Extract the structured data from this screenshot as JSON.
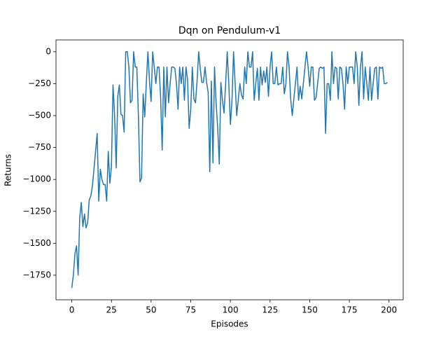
{
  "chart_data": {
    "type": "line",
    "title": "Dqn on Pendulum-v1",
    "xlabel": "Episodes",
    "ylabel": "Returns",
    "color": "#1f77b4",
    "x": [
      0,
      1,
      2,
      3,
      4,
      5,
      6,
      7,
      8,
      9,
      10,
      11,
      12,
      13,
      14,
      15,
      16,
      17,
      18,
      19,
      20,
      21,
      22,
      23,
      24,
      25,
      26,
      27,
      28,
      29,
      30,
      31,
      32,
      33,
      34,
      35,
      36,
      37,
      38,
      39,
      40,
      41,
      42,
      43,
      44,
      45,
      46,
      47,
      48,
      49,
      50,
      51,
      52,
      53,
      54,
      55,
      56,
      57,
      58,
      59,
      60,
      61,
      62,
      63,
      64,
      65,
      66,
      67,
      68,
      69,
      70,
      71,
      72,
      73,
      74,
      75,
      76,
      77,
      78,
      79,
      80,
      81,
      82,
      83,
      84,
      85,
      86,
      87,
      88,
      89,
      90,
      91,
      92,
      93,
      94,
      95,
      96,
      97,
      98,
      99,
      100,
      101,
      102,
      103,
      104,
      105,
      106,
      107,
      108,
      109,
      110,
      111,
      112,
      113,
      114,
      115,
      116,
      117,
      118,
      119,
      120,
      121,
      122,
      123,
      124,
      125,
      126,
      127,
      128,
      129,
      130,
      131,
      132,
      133,
      134,
      135,
      136,
      137,
      138,
      139,
      140,
      141,
      142,
      143,
      144,
      145,
      146,
      147,
      148,
      149,
      150,
      151,
      152,
      153,
      154,
      155,
      156,
      157,
      158,
      159,
      160,
      161,
      162,
      163,
      164,
      165,
      166,
      167,
      168,
      169,
      170,
      171,
      172,
      173,
      174,
      175,
      176,
      177,
      178,
      179,
      180,
      181,
      182,
      183,
      184,
      185,
      186,
      187,
      188,
      189,
      190,
      191,
      192,
      193,
      194,
      195,
      196,
      197,
      198,
      199
    ],
    "values": [
      -1850,
      -1750,
      -1580,
      -1520,
      -1750,
      -1300,
      -1180,
      -1370,
      -1270,
      -1380,
      -1340,
      -1160,
      -1130,
      -1050,
      -920,
      -780,
      -640,
      -1170,
      -920,
      -1000,
      -1040,
      -1040,
      -1170,
      -780,
      -1030,
      -900,
      -260,
      -500,
      -910,
      -350,
      -260,
      -490,
      -500,
      -630,
      0,
      0,
      -120,
      -400,
      -380,
      0,
      -120,
      -120,
      -500,
      -1020,
      -990,
      -330,
      -510,
      -240,
      0,
      -230,
      -390,
      0,
      -120,
      -250,
      -120,
      -120,
      -350,
      -770,
      -120,
      -510,
      -120,
      -400,
      -250,
      -120,
      -120,
      -130,
      -250,
      -450,
      -120,
      -250,
      -120,
      -380,
      -120,
      -220,
      -600,
      -450,
      -120,
      -370,
      -400,
      -230,
      0,
      -130,
      -240,
      -240,
      -120,
      -240,
      -320,
      -940,
      -230,
      -870,
      -120,
      -400,
      -600,
      -880,
      -240,
      -380,
      -480,
      -250,
      0,
      -250,
      -570,
      -380,
      0,
      -250,
      -500,
      -370,
      -250,
      -340,
      -370,
      -120,
      -250,
      0,
      -120,
      -120,
      0,
      -380,
      -250,
      -130,
      -380,
      -120,
      -260,
      -150,
      -240,
      -120,
      -350,
      -120,
      0,
      -250,
      -250,
      -120,
      -260,
      -250,
      -250,
      -120,
      -330,
      -250,
      0,
      -120,
      -370,
      -500,
      -370,
      -250,
      -120,
      -380,
      -270,
      -370,
      -250,
      -120,
      0,
      -120,
      -270,
      -120,
      -120,
      -380,
      -360,
      -250,
      -130,
      -120,
      -130,
      -120,
      -640,
      -250,
      -250,
      -380,
      0,
      -250,
      -120,
      -130,
      -370,
      -120,
      -130,
      -250,
      -450,
      -120,
      -250,
      -120,
      -120,
      -120,
      -250,
      0,
      -120,
      -420,
      -120,
      0,
      -370,
      -120,
      -250,
      -380,
      -120,
      -380,
      -250,
      -130,
      -120,
      -370,
      -120,
      -130,
      -120,
      -250,
      -250,
      -240
    ],
    "xlim": [
      -9.95,
      208.95
    ],
    "xticks": [
      0,
      25,
      50,
      75,
      100,
      125,
      150,
      175,
      200
    ],
    "ylim": [
      -1942.5,
      92.5
    ],
    "yticks": [
      {
        "value": -1750,
        "label": "−1750"
      },
      {
        "value": -1500,
        "label": "−1500"
      },
      {
        "value": -1250,
        "label": "−1250"
      },
      {
        "value": -1000,
        "label": "−1000"
      },
      {
        "value": -750,
        "label": "−750"
      },
      {
        "value": -500,
        "label": "−500"
      },
      {
        "value": -250,
        "label": "−250"
      },
      0
    ]
  }
}
